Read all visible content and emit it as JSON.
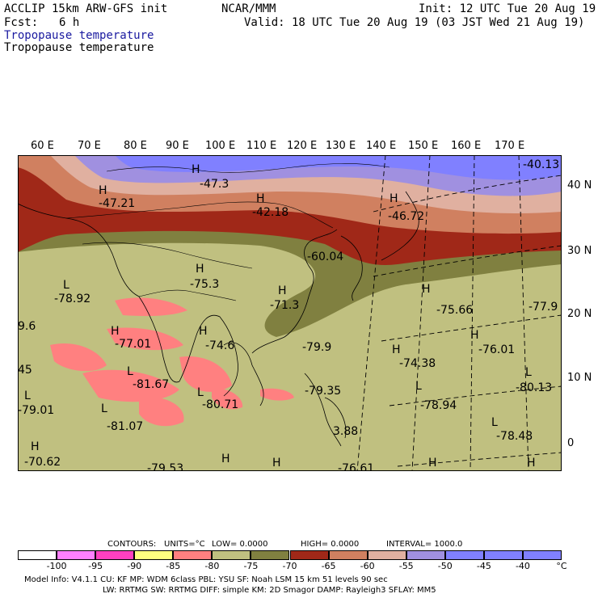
{
  "header": {
    "model_line": "ACCLIP 15km ARW-GFS init",
    "center": "NCAR/MMM",
    "init": "Init: 12 UTC Tue 20 Aug 19",
    "fcst_label": "Fcst:",
    "fcst_value": "6 h",
    "valid": "Valid: 18 UTC Tue 20 Aug 19 (03 JST Wed 21 Aug 19)",
    "field_1": "Tropopause temperature",
    "field_2": "Tropopause temperature"
  },
  "map": {
    "longitude_labels": [
      "60 E",
      "70 E",
      "80 E",
      "90 E",
      "100 E",
      "110 E",
      "120 E",
      "130 E",
      "140 E",
      "150 E",
      "160 E",
      "170 E"
    ],
    "latitude_labels": [
      "40 N",
      "30 N",
      "20 N",
      "10 N",
      "0"
    ],
    "extrema": [
      {
        "mark": "H",
        "value": "-47.3"
      },
      {
        "mark": "H",
        "value": "-47.21"
      },
      {
        "mark": "H",
        "value": "-42.18"
      },
      {
        "mark": "H",
        "value": "-46.72"
      },
      {
        "mark": "",
        "value": "-40.13"
      },
      {
        "mark": "",
        "value": "-60.04"
      },
      {
        "mark": "H",
        "value": "-75.3"
      },
      {
        "mark": "L",
        "value": "-78.92"
      },
      {
        "mark": "H",
        "value": "-71.3"
      },
      {
        "mark": "H",
        "value": "-77.01"
      },
      {
        "mark": "H",
        "value": "-74.6"
      },
      {
        "mark": "",
        "value": "-79.9"
      },
      {
        "mark": "H",
        "value": "-75.66"
      },
      {
        "mark": "",
        "value": "-77.9"
      },
      {
        "mark": "",
        "value": "9.6"
      },
      {
        "mark": "H",
        "value": "-76.01"
      },
      {
        "mark": "H",
        "value": "-74.38"
      },
      {
        "mark": "",
        "value": "45"
      },
      {
        "mark": "L",
        "value": "-81.67"
      },
      {
        "mark": "L",
        "value": "-79.01"
      },
      {
        "mark": "",
        "value": "-79.35"
      },
      {
        "mark": "L",
        "value": "-80.71"
      },
      {
        "mark": "L",
        "value": "-80.13"
      },
      {
        "mark": "L",
        "value": "-78.94"
      },
      {
        "mark": "L",
        "value": "-81.07"
      },
      {
        "mark": "",
        "value": "3.88"
      },
      {
        "mark": "L",
        "value": "-78.48"
      },
      {
        "mark": "H",
        "value": "-70.62"
      },
      {
        "mark": "",
        "value": "-79.53"
      },
      {
        "mark": "",
        "value": "-76.61"
      },
      {
        "mark": "H",
        "value": ""
      },
      {
        "mark": "H",
        "value": ""
      },
      {
        "mark": "H",
        "value": ""
      },
      {
        "mark": "H",
        "value": ""
      }
    ]
  },
  "contours_info": {
    "contours": "CONTOURS:",
    "units": "UNITS=°C",
    "low": "LOW=   0.0000",
    "high": "HIGH=   0.0000",
    "interval": "INTERVAL=    1000.0"
  },
  "legend": {
    "colors": [
      "#ffffff",
      "#ff80ff",
      "#ff40c0",
      "#ffff80",
      "#ff8080",
      "#c0c080",
      "#808040",
      "#a02818",
      "#d08060",
      "#e0b0a0",
      "#a090e0",
      "#8080ff",
      "#8080ff",
      "#8080ff"
    ],
    "ticks": [
      "-100",
      "-95",
      "-90",
      "-85",
      "-80",
      "-75",
      "-70",
      "-65",
      "-60",
      "-55",
      "-50",
      "-45",
      "-40"
    ],
    "unit": "°C"
  },
  "footer": {
    "line1": "Model Info: V4.1.1     CU: KF       MP: WDM 6class   PBL: YSU       SF: Noah LSM     15 km    51 levels   90 sec",
    "line2": "LW: RRTMG    SW: RRTMG    DIFF: simple KM: 2D Smagor DAMP: Rayleigh3  SFLAY: MM5"
  }
}
